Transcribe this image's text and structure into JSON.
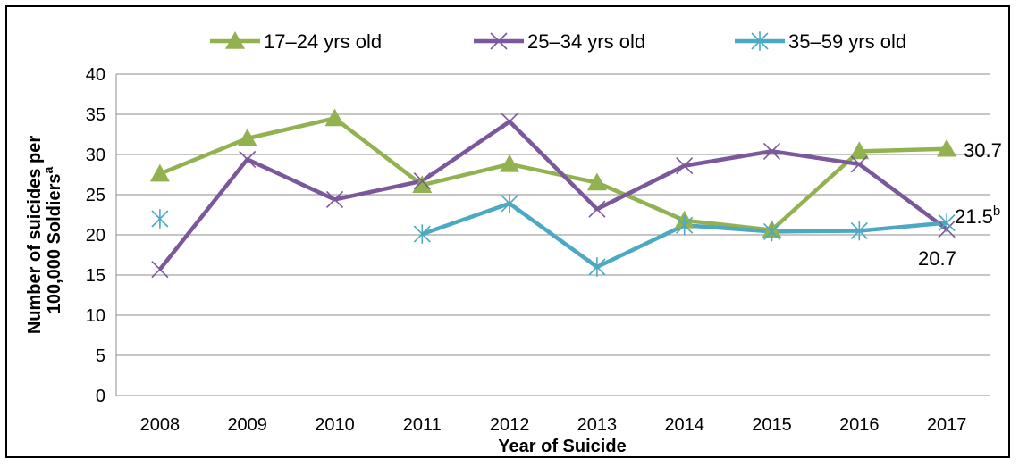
{
  "chart_data": {
    "type": "line",
    "title": "",
    "xlabel": "Year of Suicide",
    "ylabel": "Number of suicides per 100,000 Soldiers",
    "ylabel_line1": "Number of suicides per",
    "ylabel_line2": "100,000 Soldiers",
    "ylabel_superscript": "a",
    "ylim": [
      0,
      40
    ],
    "yticks": [
      0,
      5,
      10,
      15,
      20,
      25,
      30,
      35,
      40
    ],
    "grid": true,
    "legend_position": "top",
    "categories": [
      "2008",
      "2009",
      "2010",
      "2011",
      "2012",
      "2013",
      "2014",
      "2015",
      "2016",
      "2017"
    ],
    "series": [
      {
        "name": "17–24 yrs old",
        "color": "#92b14f",
        "marker": "triangle",
        "values": [
          27.6,
          32.0,
          34.5,
          26.2,
          28.8,
          26.5,
          21.8,
          20.6,
          30.4,
          30.7
        ],
        "connect": [
          true,
          true,
          true,
          true,
          true,
          true,
          true,
          true,
          true
        ]
      },
      {
        "name": "25–34 yrs old",
        "color": "#7b579b",
        "marker": "x",
        "values": [
          15.7,
          29.4,
          24.4,
          26.7,
          34.1,
          23.2,
          28.6,
          30.4,
          28.8,
          20.7
        ],
        "connect": [
          true,
          true,
          true,
          true,
          true,
          true,
          true,
          true,
          true
        ]
      },
      {
        "name": "35–59 yrs old",
        "color": "#4ba9c4",
        "marker": "asterisk",
        "values": [
          22.0,
          null,
          null,
          20.1,
          23.9,
          16.0,
          21.2,
          20.4,
          20.5,
          21.5
        ],
        "connect": [
          false,
          false,
          false,
          true,
          true,
          true,
          true,
          true,
          true
        ]
      }
    ],
    "annotations": [
      {
        "id": "label_17_24_2017",
        "text": "30.7",
        "superscript": ""
      },
      {
        "id": "label_35_59_2017",
        "text": "21.5",
        "superscript": "b"
      },
      {
        "id": "label_25_34_2017",
        "text": "20.7",
        "superscript": ""
      }
    ]
  }
}
